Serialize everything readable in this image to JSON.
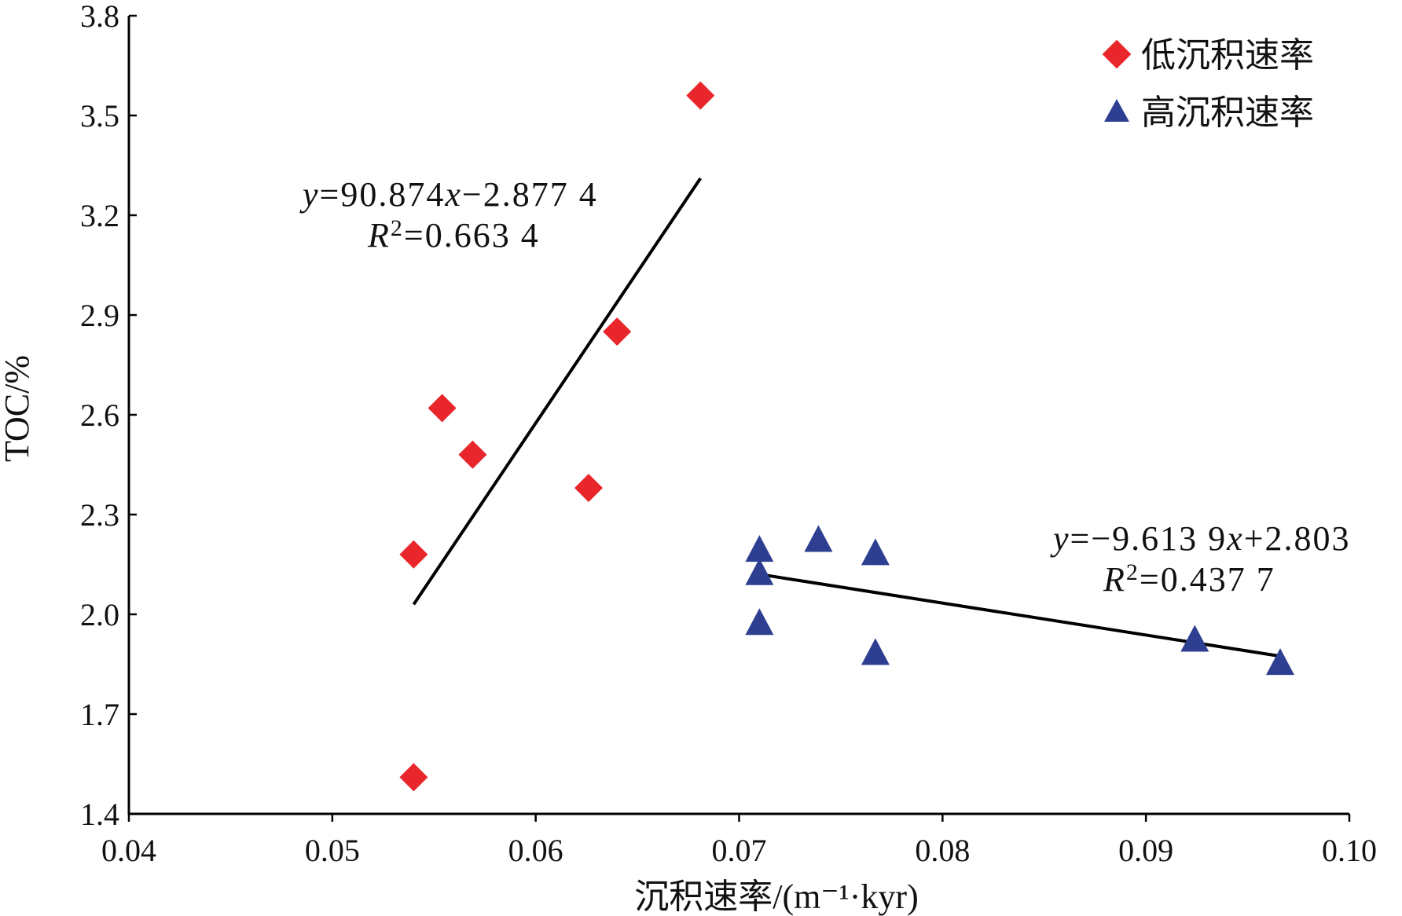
{
  "chart_data": {
    "type": "scatter",
    "xlabel": "沉积速率/(m⁻¹·kyr)",
    "ylabel": "TOC/%",
    "xlim": [
      0.04,
      0.1
    ],
    "ylim": [
      1.4,
      3.8
    ],
    "x_ticks": [
      "0.04",
      "0.05",
      "0.06",
      "0.07",
      "0.08",
      "0.09",
      "0.10"
    ],
    "y_ticks": [
      "1.4",
      "1.7",
      "2.0",
      "2.3",
      "2.6",
      "2.9",
      "3.2",
      "3.5",
      "3.8"
    ],
    "grid": false,
    "legend_position": "top-right",
    "series": [
      {
        "name": "低沉积速率",
        "marker": "diamond",
        "color": "#e8262b",
        "points": [
          {
            "x": 0.054,
            "y": 1.51
          },
          {
            "x": 0.054,
            "y": 2.18
          },
          {
            "x": 0.0554,
            "y": 2.62
          },
          {
            "x": 0.0569,
            "y": 2.48
          },
          {
            "x": 0.0626,
            "y": 2.38
          },
          {
            "x": 0.064,
            "y": 2.85
          },
          {
            "x": 0.0681,
            "y": 3.56
          }
        ],
        "fit": {
          "x": [
            0.054,
            0.0681
          ],
          "equation_y": "=90.874",
          "equation_x": "−2.877 4",
          "r2": "=0.663 4"
        }
      },
      {
        "name": "高沉积速率",
        "marker": "triangle",
        "color": "#2e3f91",
        "points": [
          {
            "x": 0.071,
            "y": 1.97
          },
          {
            "x": 0.071,
            "y": 2.12
          },
          {
            "x": 0.071,
            "y": 2.19
          },
          {
            "x": 0.0739,
            "y": 2.22
          },
          {
            "x": 0.0767,
            "y": 1.88
          },
          {
            "x": 0.0767,
            "y": 2.18
          },
          {
            "x": 0.0924,
            "y": 1.92
          },
          {
            "x": 0.0966,
            "y": 1.85
          }
        ],
        "fit": {
          "x": [
            0.071,
            0.0966
          ],
          "equation_y": "=−9.613 9",
          "equation_x": "+2.803",
          "r2": "=0.437 7"
        }
      }
    ],
    "line_color": "#000000"
  }
}
